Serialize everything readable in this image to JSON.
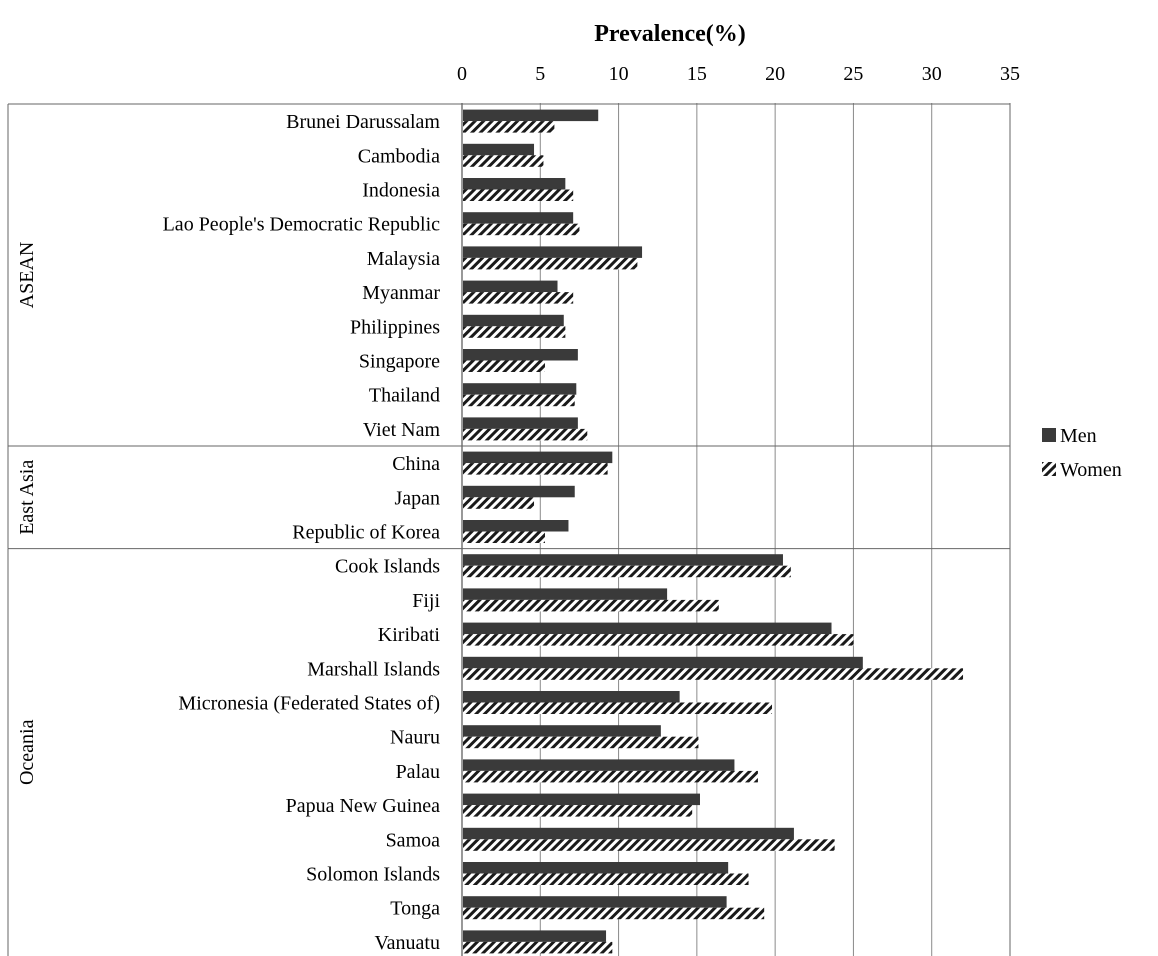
{
  "chart_data": {
    "type": "bar",
    "orientation": "horizontal",
    "title": "Prevalence(%)",
    "xlim": [
      0,
      35
    ],
    "xticks": [
      0,
      5,
      10,
      15,
      20,
      25,
      30,
      35
    ],
    "grid": true,
    "legend_position": "right",
    "groups": [
      {
        "label": "ASEAN",
        "count": 10
      },
      {
        "label": "East Asia",
        "count": 3
      },
      {
        "label": "Oceania",
        "count": 12
      }
    ],
    "categories": [
      "Brunei Darussalam",
      "Cambodia",
      "Indonesia",
      "Lao People's Democratic Republic",
      "Malaysia",
      "Myanmar",
      "Philippines",
      "Singapore",
      "Thailand",
      "Viet Nam",
      "China",
      "Japan",
      "Republic of Korea",
      "Cook Islands",
      "Fiji",
      "Kiribati",
      "Marshall Islands",
      "Micronesia (Federated States of)",
      "Nauru",
      "Palau",
      "Papua New Guinea",
      "Samoa",
      "Solomon Islands",
      "Tonga",
      "Vanuatu"
    ],
    "series": [
      {
        "name": "Men",
        "pattern": "solid",
        "color": "#3a3a3a",
        "values": [
          8.7,
          4.6,
          6.6,
          7.1,
          11.5,
          6.1,
          6.5,
          7.4,
          7.3,
          7.4,
          9.6,
          7.2,
          6.8,
          20.5,
          13.1,
          23.6,
          25.6,
          13.9,
          12.7,
          17.4,
          15.2,
          21.2,
          17.0,
          16.9,
          9.2
        ]
      },
      {
        "name": "Women",
        "pattern": "hatched",
        "color": "#1a1a1a",
        "values": [
          5.9,
          5.2,
          7.1,
          7.5,
          11.2,
          7.1,
          6.6,
          5.3,
          7.2,
          8.0,
          9.3,
          4.6,
          5.3,
          21.0,
          16.4,
          25.0,
          32.0,
          19.8,
          15.1,
          18.9,
          14.7,
          23.8,
          18.3,
          19.3,
          9.6
        ]
      }
    ]
  }
}
